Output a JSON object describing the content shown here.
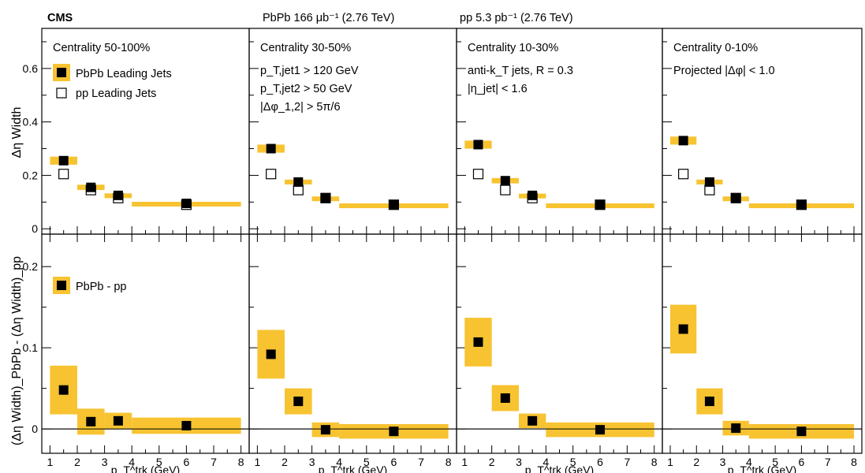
{
  "header": {
    "experiment": "CMS",
    "pbpb_lumi": "PbPb 166 μb⁻¹ (2.76 TeV)",
    "pp_lumi": "pp 5.3 pb⁻¹ (2.76 TeV)"
  },
  "colors": {
    "band": "#f7c331",
    "marker": "#000000",
    "frame": "#000000"
  },
  "axes": {
    "x_label": "p_T^trk (GeV)",
    "x_ticks": [
      "1",
      "2",
      "3",
      "4",
      "5",
      "6",
      "7",
      "8"
    ],
    "x_range": [
      0.7,
      8.3
    ],
    "top_ylabel": "Δη Width",
    "top_yticks": [
      "0",
      "0.2",
      "0.4",
      "0.6"
    ],
    "top_yrange": [
      -0.02,
      0.75
    ],
    "bottom_ylabel": "(Δη Width)_PbPb - (Δη Width)_pp",
    "bottom_yticks": [
      "0",
      "0.1",
      "0.2"
    ],
    "bottom_yrange": [
      -0.03,
      0.24
    ]
  },
  "panels": [
    {
      "centrality": "Centrality 50-100%",
      "extra_lines": []
    },
    {
      "centrality": "Centrality 30-50%",
      "extra_lines": [
        "p_T,jet1 > 120 GeV",
        "p_T,jet2 > 50 GeV",
        "|Δφ_1,2| > 5π/6"
      ]
    },
    {
      "centrality": "Centrality 10-30%",
      "extra_lines": [
        "anti-k_T jets, R = 0.3",
        "|η_jet| < 1.6"
      ]
    },
    {
      "centrality": "Centrality 0-10%",
      "extra_lines": [
        "Projected |Δφ| < 1.0"
      ]
    }
  ],
  "legend": {
    "pbpb": "PbPb Leading Jets",
    "pp": "pp Leading Jets",
    "diff": "PbPb - pp"
  },
  "chart_data": [
    {
      "type": "scatter",
      "title": "",
      "xlabel": "p_T^trk (GeV)",
      "ylabel": "Δη Width",
      "ylim": [
        -0.02,
        0.75
      ],
      "bins": [
        [
          1,
          2
        ],
        [
          2,
          3
        ],
        [
          3,
          4
        ],
        [
          4,
          8
        ]
      ],
      "x": [
        1.5,
        2.5,
        3.5,
        6
      ],
      "panels": [
        {
          "name": "Centrality 50-100%",
          "series": [
            {
              "name": "PbPb Leading Jets",
              "values": [
                0.255,
                0.155,
                0.125,
                0.095
              ],
              "sys": [
                0.03,
                0.02,
                0.015,
                0.012
              ]
            },
            {
              "name": "pp Leading Jets",
              "values": [
                0.205,
                0.145,
                0.115,
                0.09
              ]
            }
          ]
        },
        {
          "name": "Centrality 30-50%",
          "series": [
            {
              "name": "PbPb Leading Jets",
              "values": [
                0.3,
                0.175,
                0.115,
                0.09
              ],
              "sys": [
                0.03,
                0.018,
                0.012,
                0.01
              ]
            },
            {
              "name": "pp Leading Jets",
              "values": [
                0.205,
                0.145,
                0.115,
                0.09
              ]
            }
          ]
        },
        {
          "name": "Centrality 10-30%",
          "series": [
            {
              "name": "PbPb Leading Jets",
              "values": [
                0.315,
                0.18,
                0.125,
                0.09
              ],
              "sys": [
                0.03,
                0.02,
                0.013,
                0.01
              ]
            },
            {
              "name": "pp Leading Jets",
              "values": [
                0.205,
                0.145,
                0.115,
                0.09
              ]
            }
          ]
        },
        {
          "name": "Centrality 0-10%",
          "series": [
            {
              "name": "PbPb Leading Jets",
              "values": [
                0.33,
                0.175,
                0.115,
                0.09
              ],
              "sys": [
                0.03,
                0.018,
                0.012,
                0.01
              ]
            },
            {
              "name": "pp Leading Jets",
              "values": [
                0.205,
                0.145,
                0.115,
                0.09
              ]
            }
          ]
        }
      ]
    },
    {
      "type": "scatter",
      "title": "",
      "xlabel": "p_T^trk (GeV)",
      "ylabel": "(Δη Width)_PbPb - (Δη Width)_pp",
      "ylim": [
        -0.03,
        0.24
      ],
      "bins": [
        [
          1,
          2
        ],
        [
          2,
          3
        ],
        [
          3,
          4
        ],
        [
          4,
          8
        ]
      ],
      "x": [
        1.5,
        2.5,
        3.5,
        6
      ],
      "panels": [
        {
          "name": "Centrality 50-100%",
          "series": [
            {
              "name": "PbPb - pp",
              "values": [
                0.048,
                0.009,
                0.01,
                0.004
              ],
              "sys": [
                0.03,
                0.016,
                0.01,
                0.01
              ]
            }
          ]
        },
        {
          "name": "Centrality 30-50%",
          "series": [
            {
              "name": "PbPb - pp",
              "values": [
                0.092,
                0.034,
                -0.001,
                -0.003
              ],
              "sys": [
                0.03,
                0.016,
                0.009,
                0.009
              ]
            }
          ]
        },
        {
          "name": "Centrality 10-30%",
          "series": [
            {
              "name": "PbPb - pp",
              "values": [
                0.107,
                0.038,
                0.01,
                -0.001
              ],
              "sys": [
                0.03,
                0.016,
                0.009,
                0.009
              ]
            }
          ]
        },
        {
          "name": "Centrality 0-10%",
          "series": [
            {
              "name": "PbPb - pp",
              "values": [
                0.123,
                0.034,
                0.001,
                -0.003
              ],
              "sys": [
                0.03,
                0.016,
                0.009,
                0.009
              ]
            }
          ]
        }
      ]
    }
  ]
}
